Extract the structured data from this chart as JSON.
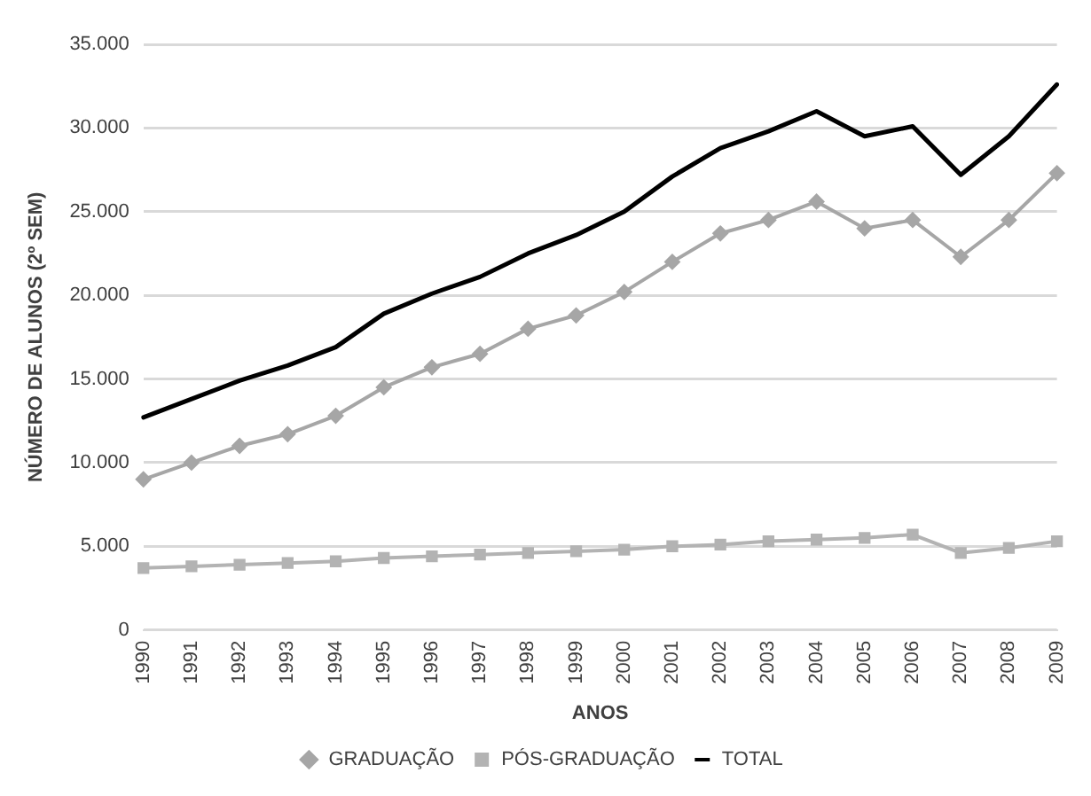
{
  "chart_data": {
    "type": "line",
    "xlabel": "ANOS",
    "ylabel": "NÚMERO DE ALUNOS (2º SEM)",
    "categories": [
      "1990",
      "1991",
      "1992",
      "1993",
      "1994",
      "1995",
      "1996",
      "1997",
      "1998",
      "1999",
      "2000",
      "2001",
      "2002",
      "2003",
      "2004",
      "2005",
      "2006",
      "2007",
      "2008",
      "2009"
    ],
    "series": [
      {
        "name": "GRADUAÇÃO",
        "color": "#a6a6a6",
        "marker": "diamond",
        "values": [
          9000,
          10000,
          11000,
          11700,
          12800,
          14500,
          15700,
          16500,
          18000,
          18800,
          20200,
          22000,
          23700,
          24500,
          25600,
          24000,
          24500,
          22300,
          24500,
          27300
        ]
      },
      {
        "name": "PÓS-GRADUAÇÃO",
        "color": "#b3b3b3",
        "marker": "square",
        "values": [
          3700,
          3800,
          3900,
          4000,
          4100,
          4300,
          4400,
          4500,
          4600,
          4700,
          4800,
          5000,
          5100,
          5300,
          5400,
          5500,
          5700,
          4600,
          4900,
          5300
        ]
      },
      {
        "name": "TOTAL",
        "color": "#000000",
        "marker": "none",
        "values": [
          12700,
          13800,
          14900,
          15800,
          16900,
          18900,
          20100,
          21100,
          22500,
          23600,
          25000,
          27100,
          28800,
          29800,
          31000,
          29500,
          30100,
          27200,
          29500,
          32600
        ]
      }
    ],
    "ylim": [
      0,
      35000
    ],
    "yticks": [
      {
        "value": 0,
        "label": "0"
      },
      {
        "value": 5000,
        "label": "5.000"
      },
      {
        "value": 10000,
        "label": "10.000"
      },
      {
        "value": 15000,
        "label": "15.000"
      },
      {
        "value": 20000,
        "label": "20.000"
      },
      {
        "value": 25000,
        "label": "25.000"
      },
      {
        "value": 30000,
        "label": "30.000"
      },
      {
        "value": 35000,
        "label": "35.000"
      }
    ],
    "grid": "y",
    "legend": "bottom",
    "line_style": "solid"
  }
}
